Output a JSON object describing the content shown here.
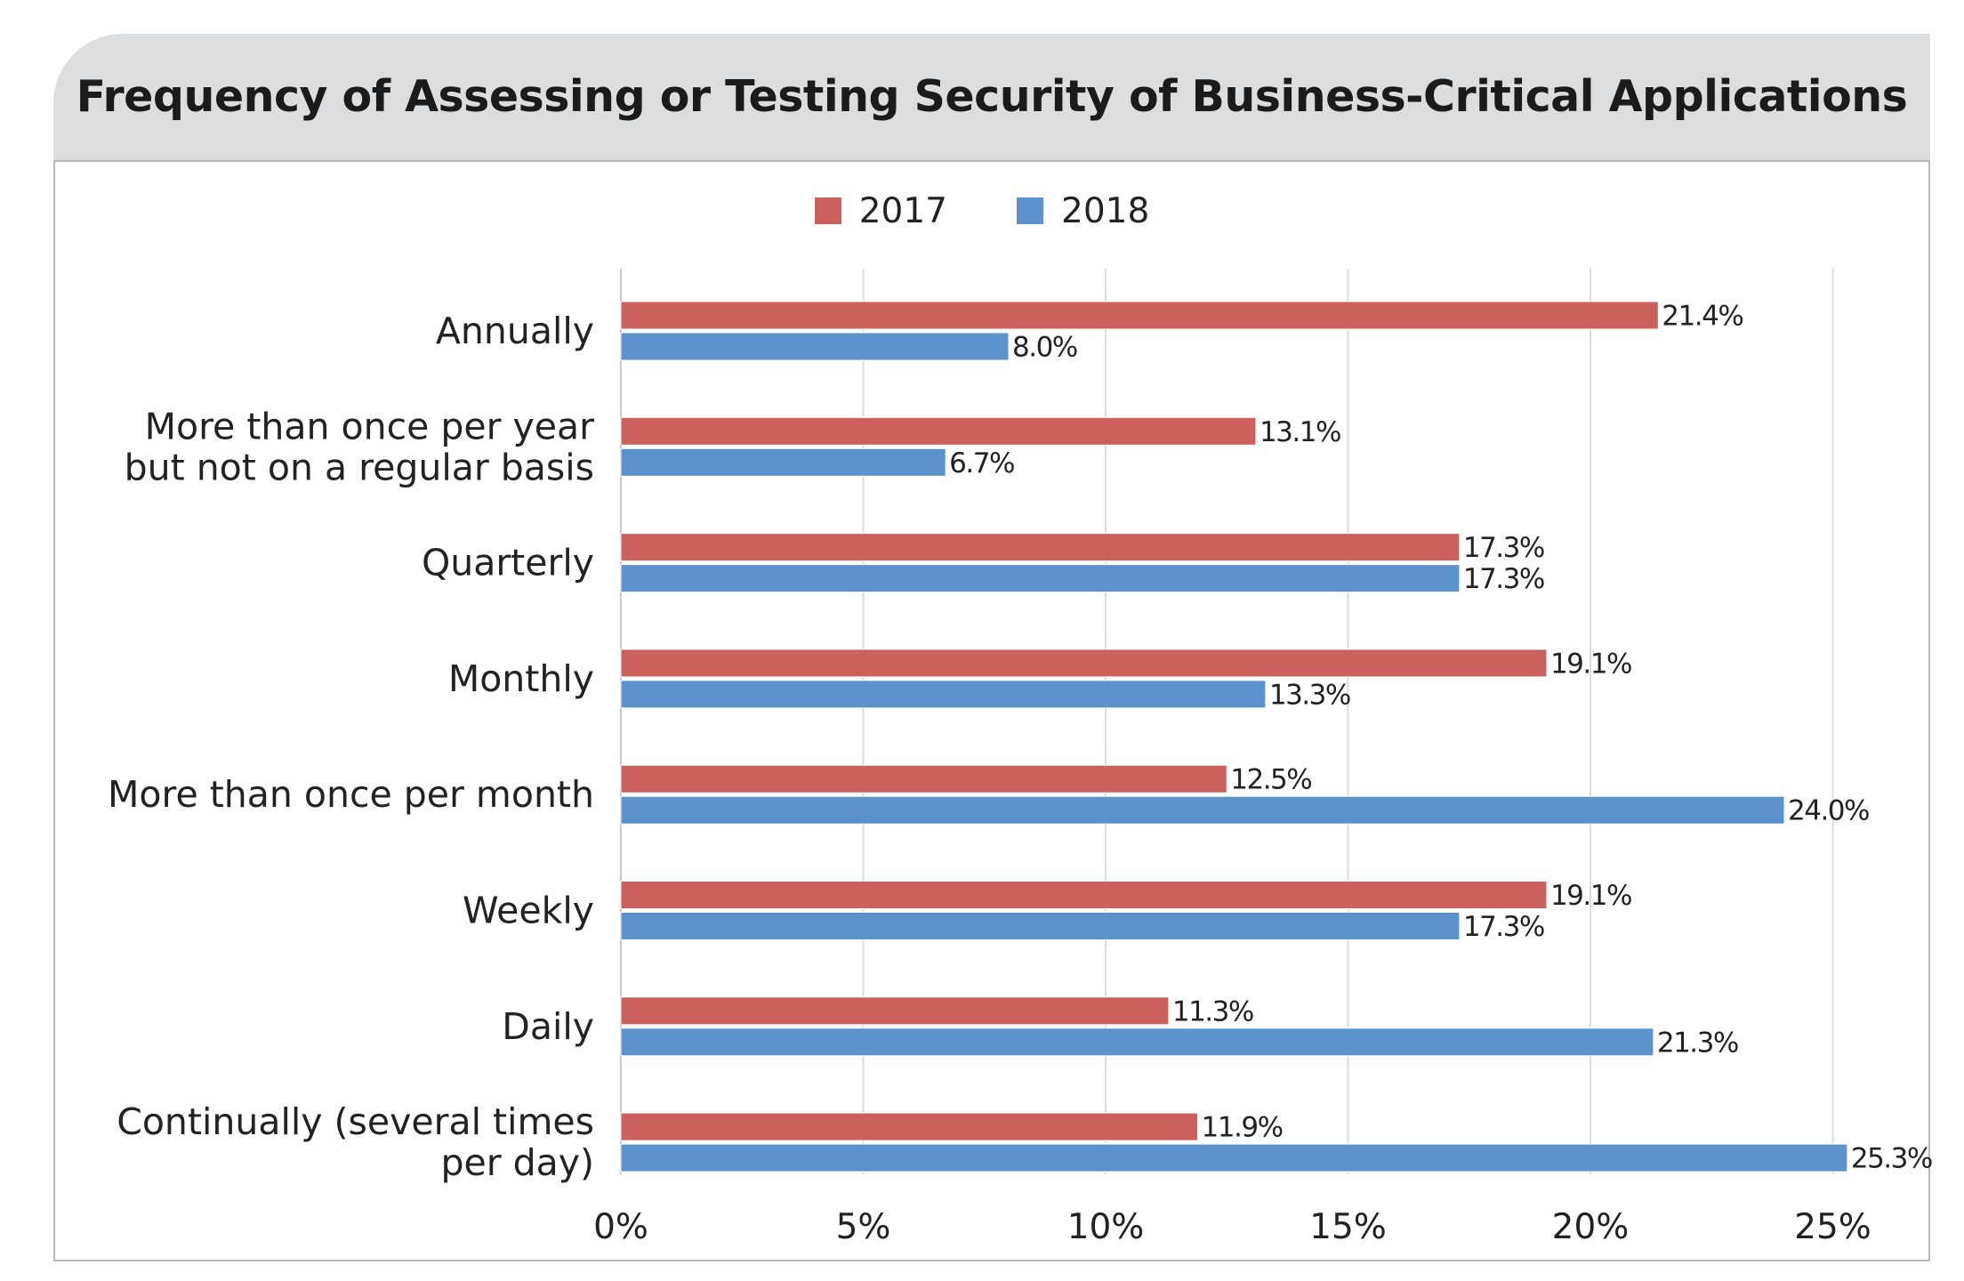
{
  "chart_data": {
    "type": "bar",
    "orientation": "horizontal",
    "title": "Frequency of Assessing or Testing Security of Business-Critical Applications",
    "categories": [
      [
        "Annually"
      ],
      [
        "More than once per year",
        "but not on a regular basis"
      ],
      [
        "Quarterly"
      ],
      [
        "Monthly"
      ],
      [
        "More than once per month"
      ],
      [
        "Weekly"
      ],
      [
        "Daily"
      ],
      [
        "Continually (several times",
        "per day)"
      ]
    ],
    "series": [
      {
        "name": "2017",
        "color": "#cb605c",
        "values": [
          21.4,
          13.1,
          17.3,
          19.1,
          12.5,
          19.1,
          11.3,
          11.9
        ],
        "labels": [
          "21.4%",
          "13.1%",
          "17.3%",
          "19.1%",
          "12.5%",
          "19.1%",
          "11.3%",
          "11.9%"
        ]
      },
      {
        "name": "2018",
        "color": "#5b92cc",
        "values": [
          8.0,
          6.7,
          17.3,
          13.3,
          24.0,
          17.3,
          21.3,
          25.3
        ],
        "labels": [
          "8.0%",
          "6.7%",
          "17.3%",
          "13.3%",
          "24.0%",
          "17.3%",
          "21.3%",
          "25.3%"
        ]
      }
    ],
    "xlim": [
      0,
      27
    ],
    "xticks": [
      0,
      5,
      10,
      15,
      20,
      25
    ],
    "xtick_labels": [
      "0%",
      "5%",
      "10%",
      "15%",
      "20%",
      "25%"
    ],
    "grid": "vertical",
    "legend_position": "top-center"
  }
}
